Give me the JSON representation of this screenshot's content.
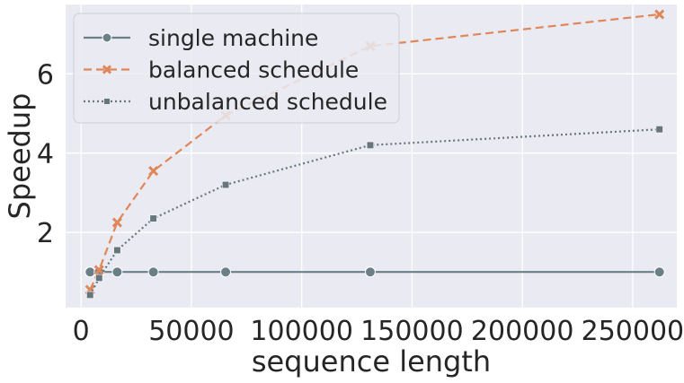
{
  "chart_data": {
    "type": "line",
    "title": "",
    "xlabel": "sequence length",
    "ylabel": "Speedup",
    "xlim": [
      -7000,
      270000
    ],
    "ylim": [
      0.1,
      7.75
    ],
    "x_ticks": [
      0,
      50000,
      100000,
      150000,
      200000,
      250000
    ],
    "x_tick_labels": [
      "0",
      "50000",
      "100000",
      "150000",
      "200000",
      "250000"
    ],
    "y_ticks": [
      2,
      4,
      6
    ],
    "y_tick_labels": [
      "2",
      "4",
      "6"
    ],
    "grid": true,
    "legend_position": "top-left",
    "x": [
      4096,
      8192,
      16384,
      32768,
      65536,
      131072,
      262144
    ],
    "series": [
      {
        "name": "single machine",
        "values": [
          1.0,
          1.0,
          1.0,
          1.0,
          1.0,
          1.0,
          1.0
        ],
        "color": "#6b7f86",
        "line_style": "solid",
        "marker": "circle"
      },
      {
        "name": "balanced schedule",
        "values": [
          0.55,
          1.05,
          2.25,
          3.55,
          4.95,
          6.7,
          7.5
        ],
        "color": "#e0875a",
        "line_style": "dashed",
        "marker": "x"
      },
      {
        "name": "unbalanced schedule",
        "values": [
          0.42,
          0.85,
          1.55,
          2.35,
          3.2,
          4.2,
          4.6
        ],
        "color": "#66767c",
        "line_style": "dotted",
        "marker": "square"
      }
    ]
  },
  "colors": {
    "plot_background": "#eaeaf2",
    "grid": "#ffffff",
    "text": "#262626"
  }
}
